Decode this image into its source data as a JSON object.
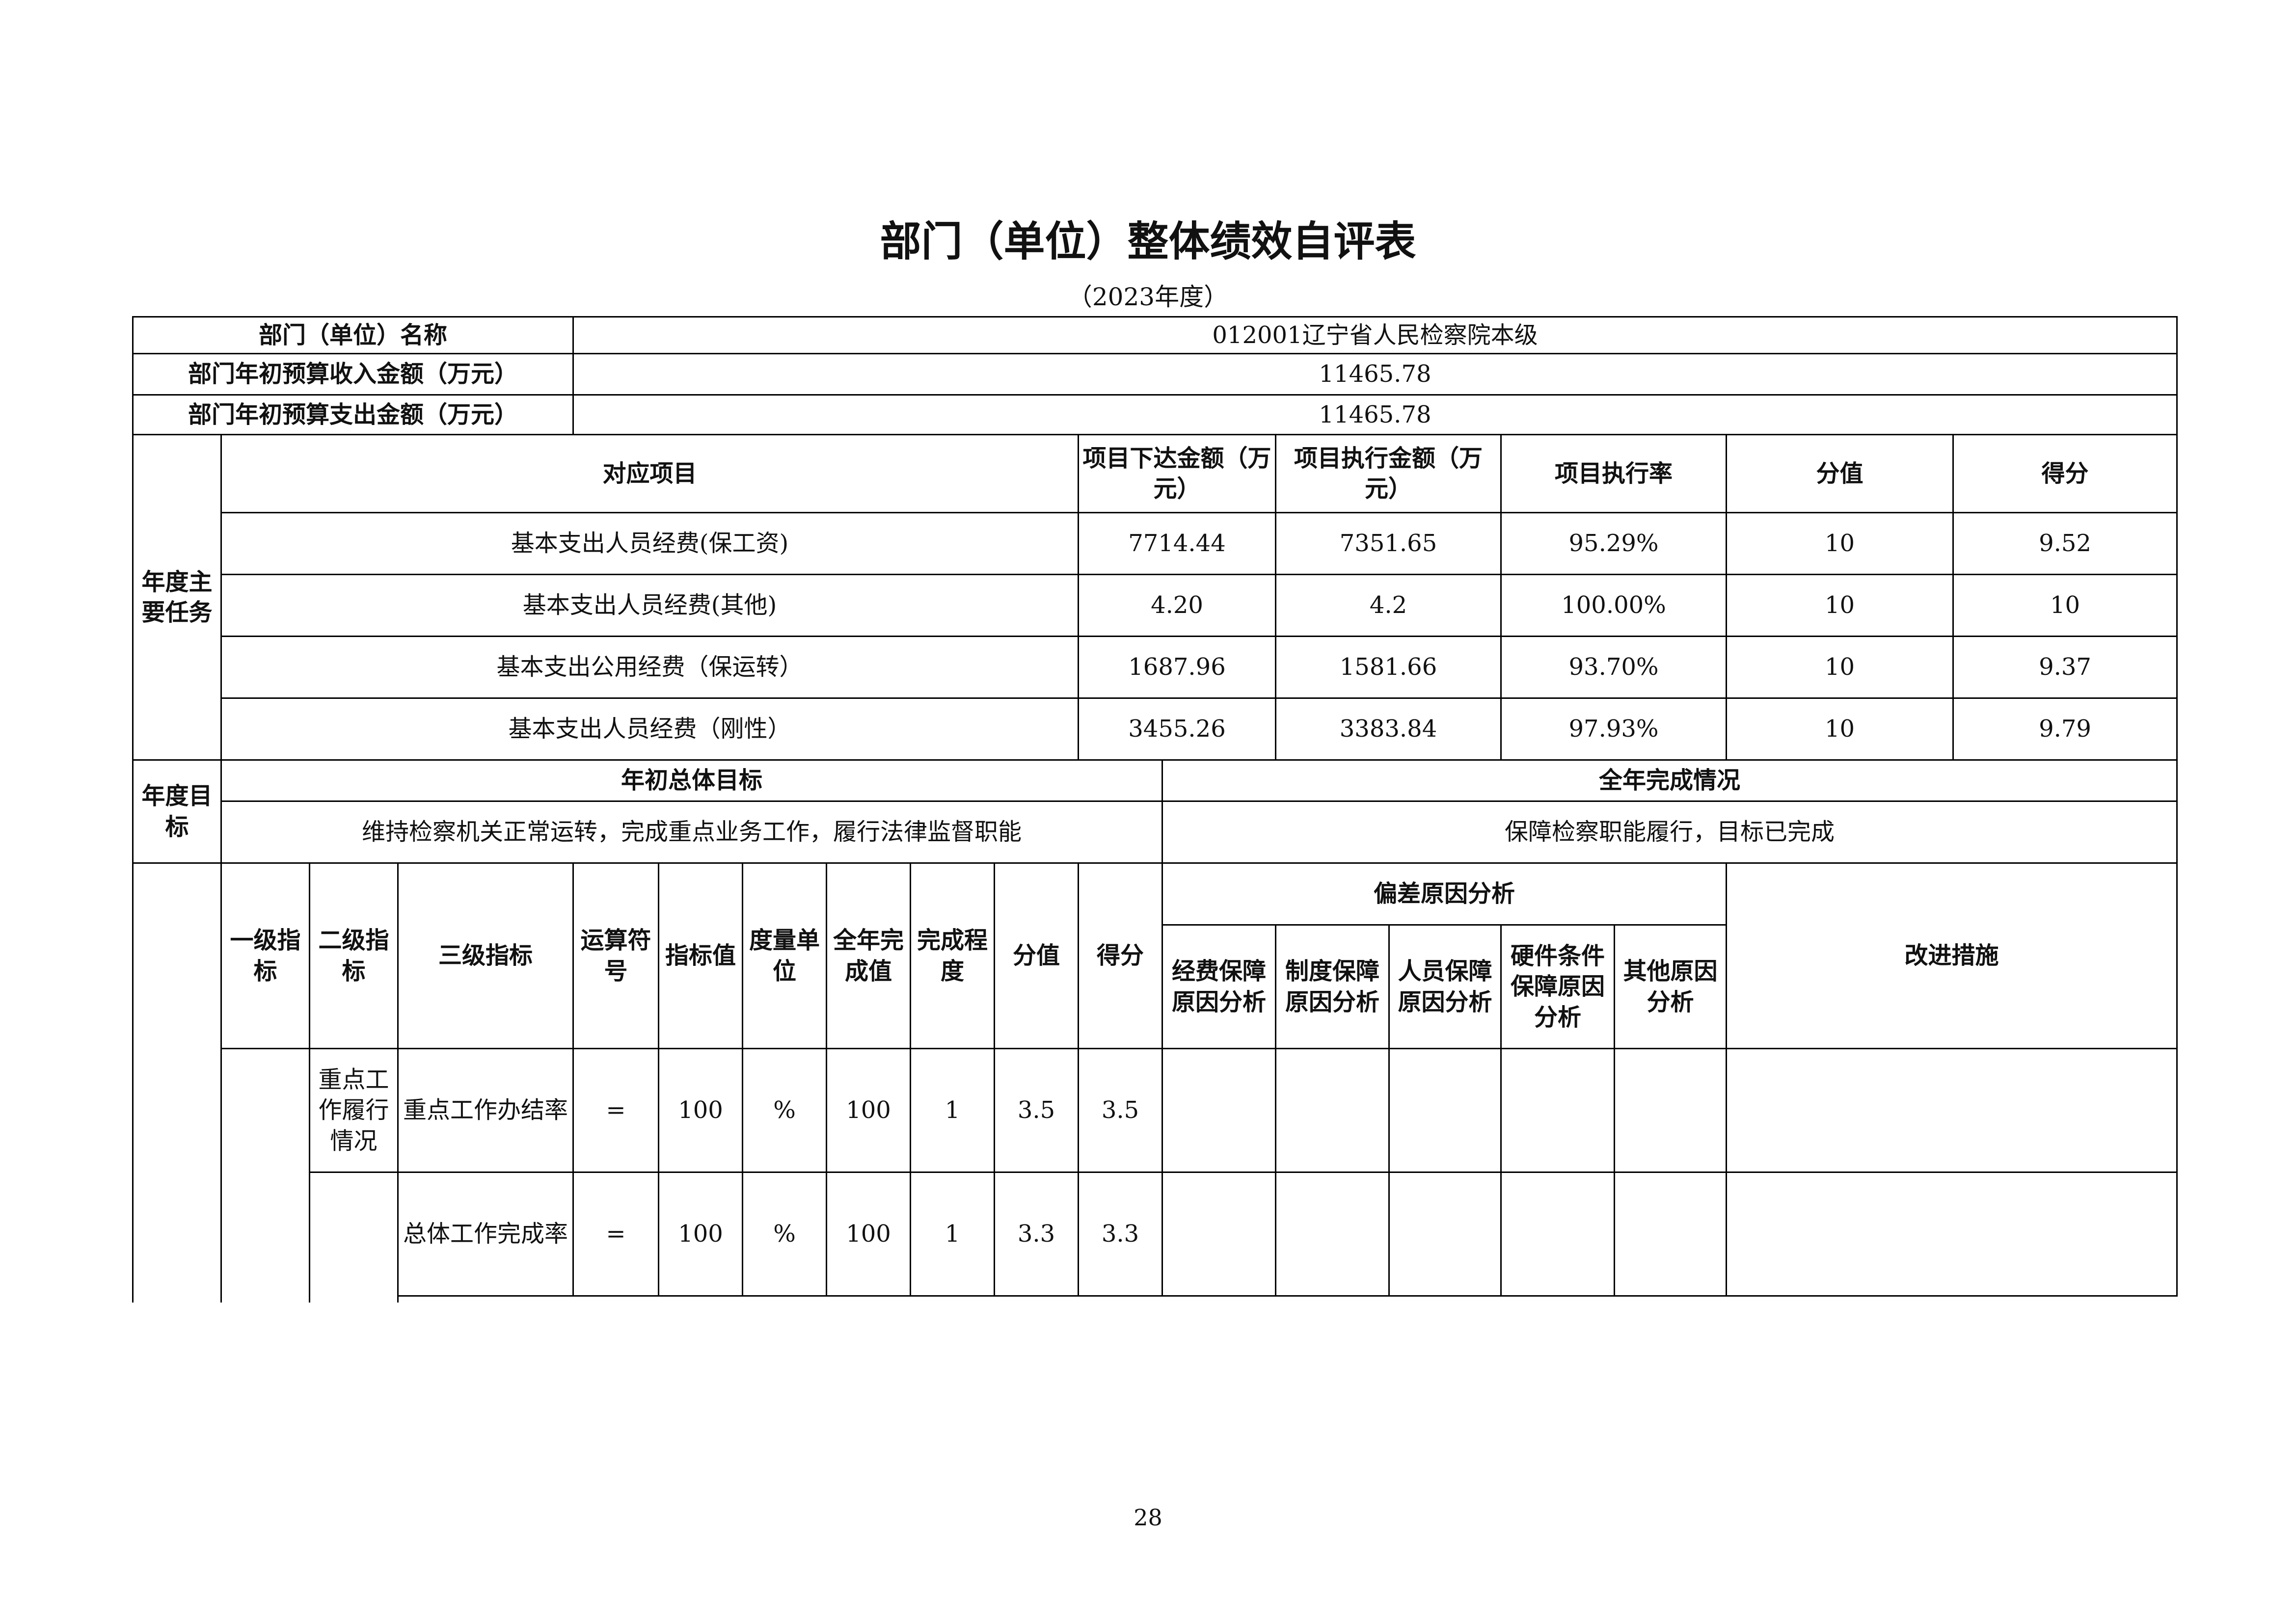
{
  "title": "部门（单位）整体绩效自评表",
  "subtitle": "（2023年度）",
  "page_number": "28",
  "info": {
    "name_label": "部门（单位）名称",
    "name_value": "012001辽宁省人民检察院本级",
    "income_label": "部门年初预算收入金额（万元）",
    "income_value": "11465.78",
    "expense_label": "部门年初预算支出金额（万元）",
    "expense_value": "11465.78"
  },
  "tasks": {
    "section_label": "年度主要任务",
    "headers": [
      "对应项目",
      "项目下达金额（万元）",
      "项目执行金额（万元）",
      "项目执行率",
      "分值",
      "得分"
    ],
    "rows": [
      [
        "基本支出人员经费(保工资)",
        "7714.44",
        "7351.65",
        "95.29%",
        "10",
        "9.52"
      ],
      [
        "基本支出人员经费(其他)",
        "4.20",
        "4.2",
        "100.00%",
        "10",
        "10"
      ],
      [
        "基本支出公用经费（保运转）",
        "1687.96",
        "1581.66",
        "93.70%",
        "10",
        "9.37"
      ],
      [
        "基本支出人员经费（刚性）",
        "3455.26",
        "3383.84",
        "97.93%",
        "10",
        "9.79"
      ]
    ]
  },
  "goals": {
    "section_label": "年度目标",
    "initial_header": "年初总体目标",
    "completion_header": "全年完成情况",
    "initial_value": "维持检察机关正常运转，完成重点业务工作，履行法律监督职能",
    "completion_value": "保障检察职能履行，目标已完成"
  },
  "indicators": {
    "headers": [
      "一级指标",
      "二级指标",
      "三级指标",
      "运算符号",
      "指标值",
      "度量单位",
      "全年完成值",
      "完成程度",
      "分值",
      "得分"
    ],
    "deviation_header": "偏差原因分析",
    "deviation_sub": [
      "经费保障原因分析",
      "制度保障原因分析",
      "人员保障原因分析",
      "硬件条件保障原因分析",
      "其他原因分析"
    ],
    "improve_header": "改进措施",
    "rows": [
      {
        "level2": "重点工作履行情况",
        "level3": "重点工作办结率",
        "op": "=",
        "target": "100",
        "unit": "%",
        "actual": "100",
        "degree": "1",
        "score_value": "3.5",
        "score": "3.5"
      },
      {
        "level2": "",
        "level3": "总体工作完成率",
        "op": "=",
        "target": "100",
        "unit": "%",
        "actual": "100",
        "degree": "1",
        "score_value": "3.3",
        "score": "3.3"
      }
    ]
  }
}
